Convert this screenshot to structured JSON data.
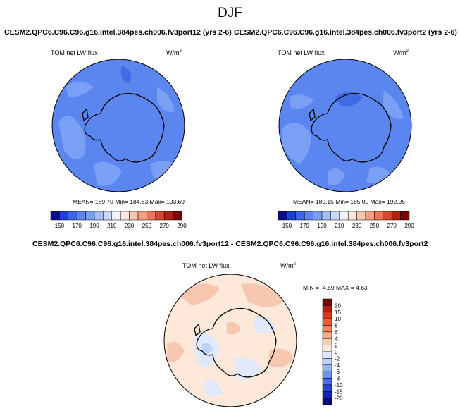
{
  "title": "DJF",
  "panels": [
    {
      "title": "CESM2.QPC6.C96.C96.g16.intel.384pes.ch006.fv3port12 (yrs 2-6)",
      "field_label": "TOM net LW flux",
      "units": "W/m",
      "units_sup": "2",
      "stats": {
        "mean": "189.70",
        "min": "184.63",
        "max": "193.69"
      },
      "stats_text": "MEAN= 189.70  Min= 184.63  Max= 193.69"
    },
    {
      "title": "CESM2.QPC6.C96.C96.g16.intel.384pes.ch006.fv3port2 (yrs 2-6)",
      "field_label": "TOM net LW flux",
      "units": "W/m",
      "units_sup": "2",
      "stats": {
        "mean": "189.15",
        "min": "185.00",
        "max": "192.95"
      },
      "stats_text": "MEAN= 189.15  Min= 185.00  Max= 192.95"
    },
    {
      "title": "CESM2.QPC6.C96.C96.g16.intel.384pes.ch006.fv3port12 - CESM2.QPC6.C96.C96.g16.intel.384pes.ch006.fv3port2",
      "field_label": "TOM net LW flux",
      "units": "W/m",
      "units_sup": "2",
      "stats": {
        "min": "-4.59",
        "max": "4.63"
      },
      "stats_text": "MIN = -4.59 MAX = 4.63"
    }
  ],
  "colorbar_abs": {
    "labels": [
      "150",
      "170",
      "190",
      "210",
      "230",
      "250",
      "270",
      "290"
    ],
    "colors": [
      "#0a0a8a",
      "#1f3fd0",
      "#3a66e8",
      "#5b86f0",
      "#7aa0f5",
      "#a3bdf8",
      "#c9d8fb",
      "#eef3fd",
      "#fde7dc",
      "#f8c7b0",
      "#f2a182",
      "#e87757",
      "#d44a2e",
      "#b2200f",
      "#7a0000"
    ]
  },
  "colorbar_diff": {
    "labels": [
      "20",
      "15",
      "10",
      "8",
      "6",
      "4",
      "2",
      "0",
      "-2",
      "-4",
      "-6",
      "-8",
      "-10",
      "-15",
      "-20"
    ],
    "colors": [
      "#7a0000",
      "#b2200f",
      "#d8361c",
      "#ee5a2f",
      "#f5835a",
      "#f8a884",
      "#fbcbb0",
      "#fde8da",
      "#dfe9fb",
      "#bcd0f8",
      "#98b3f3",
      "#6f90ee",
      "#4b6ee6",
      "#2746d6",
      "#1024b0",
      "#06097a"
    ]
  },
  "map_colors": {
    "abs_base": "#5b86f0",
    "abs_light": "#7aa0f5",
    "abs_dark": "#3f6be6",
    "diff_base": "#fde8da",
    "diff_warm": "#f8c7b0",
    "diff_cool": "#dfe9fb",
    "diff_cool2": "#bcd0f8",
    "coast": "#000000"
  }
}
